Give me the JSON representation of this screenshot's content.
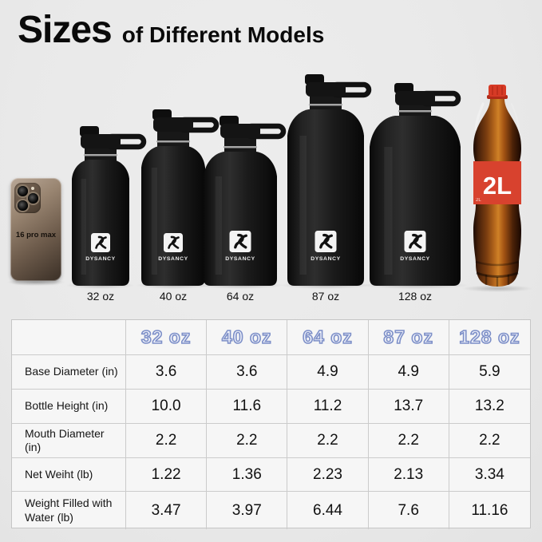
{
  "title": {
    "main": "Sizes",
    "sub": "of Different Models"
  },
  "brand": {
    "logo_text": "DYSANCY"
  },
  "lineup": {
    "phone": {
      "label": "16 pro max"
    },
    "bottles": [
      {
        "label": "32 oz"
      },
      {
        "label": "40 oz"
      },
      {
        "label": "64 oz"
      },
      {
        "label": "87 oz"
      },
      {
        "label": "128 oz"
      }
    ],
    "cola": {
      "label": "2L"
    }
  },
  "table": {
    "columns": [
      "32 oz",
      "40 oz",
      "64 oz",
      "87 oz",
      "128 oz"
    ],
    "rows": [
      {
        "label": "Base Diameter (in)",
        "values": [
          "3.6",
          "3.6",
          "4.9",
          "4.9",
          "5.9"
        ]
      },
      {
        "label": "Bottle Height (in)",
        "values": [
          "10.0",
          "11.6",
          "11.2",
          "13.7",
          "13.2"
        ]
      },
      {
        "label": "Mouth Diameter (in)",
        "values": [
          "2.2",
          "2.2",
          "2.2",
          "2.2",
          "2.2"
        ]
      },
      {
        "label": "Net Weiht (lb)",
        "values": [
          "1.22",
          "1.36",
          "2.23",
          "2.13",
          "3.34"
        ]
      },
      {
        "label": "Weight Filled with Water (lb)",
        "values": [
          "3.47",
          "3.97",
          "6.44",
          "7.6",
          "11.16"
        ]
      }
    ]
  },
  "colors": {
    "background": "#e9e9e9",
    "bottle_black": "#161616",
    "header_outline_blue": "#7e90c8",
    "cola_red": "#d8422e",
    "table_bg": "#f6f6f6",
    "table_border": "#cbcbcb"
  }
}
